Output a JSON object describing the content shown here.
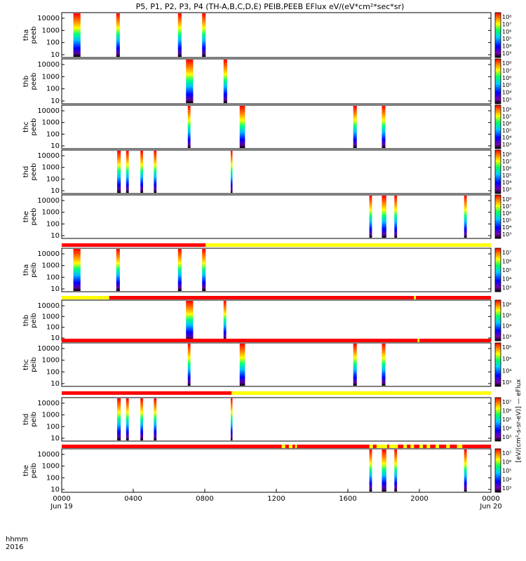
{
  "chart_data": {
    "type": "heatmap",
    "title": "P5, P1, P2, P3, P4 (TH-A,B,C,D,E) PEIB,PEEB EFlux eV/(eV*cm²*sec*sr)",
    "xlabel": "hhmm",
    "x_prefix": "2016",
    "x_ticks": [
      "0000",
      "0400",
      "0800",
      "1200",
      "1600",
      "2000",
      "0000"
    ],
    "x_date_labels": [
      "Jun 19",
      "Jun 20"
    ],
    "x_range_hours": [
      0,
      24
    ],
    "colorbar_label": "[eV/(cm²-s-sr-eV)] — eFlux",
    "y_ticks": [
      "10",
      "100",
      "1000",
      "10000"
    ],
    "y_log": true,
    "colors": {
      "burst_on": "#ff0000",
      "burst_off": "#ffff00",
      "frame": "#000000"
    },
    "panels": [
      {
        "label": "tha peeb",
        "bursts": [
          [
            0.65,
            1.05
          ],
          [
            3.05,
            3.25
          ],
          [
            6.5,
            6.7
          ],
          [
            7.85,
            8.05
          ]
        ],
        "cb_ticks": [
          "10⁸",
          "10⁷",
          "10⁶",
          "10⁵",
          "10⁴",
          "10³"
        ]
      },
      {
        "label": "thb peeb",
        "bursts": [
          [
            6.95,
            7.35
          ],
          [
            9.05,
            9.25
          ]
        ],
        "cb_ticks": [
          "10⁸",
          "10⁷",
          "10⁶",
          "10⁵",
          "10⁴",
          "10³"
        ]
      },
      {
        "label": "thc peeb",
        "bursts": [
          [
            7.05,
            7.2
          ],
          [
            9.95,
            10.25
          ],
          [
            16.3,
            16.5
          ],
          [
            17.9,
            18.1
          ]
        ],
        "cb_ticks": [
          "10⁸",
          "10⁷",
          "10⁶",
          "10⁵",
          "10⁴",
          "10³"
        ]
      },
      {
        "label": "thd peeb",
        "bursts": [
          [
            3.1,
            3.3
          ],
          [
            3.6,
            3.75
          ],
          [
            4.4,
            4.55
          ],
          [
            5.15,
            5.3
          ],
          [
            9.45,
            9.55
          ]
        ],
        "cb_ticks": [
          "10⁸",
          "10⁷",
          "10⁶",
          "10⁵",
          "10⁴",
          "10³"
        ]
      },
      {
        "label": "the peeb",
        "bursts": [
          [
            17.2,
            17.35
          ],
          [
            17.9,
            18.15
          ],
          [
            18.6,
            18.75
          ],
          [
            22.5,
            22.65
          ]
        ],
        "cb_ticks": [
          "10⁸",
          "10⁷",
          "10⁶",
          "10⁵",
          "10⁴",
          "10³"
        ]
      },
      {
        "label": "tha peib",
        "bursts": [
          [
            0.65,
            1.05
          ],
          [
            3.05,
            3.25
          ],
          [
            6.5,
            6.7
          ],
          [
            7.85,
            8.05
          ]
        ],
        "cb_ticks": [
          "10⁷",
          "10⁶",
          "10⁵",
          "10⁴",
          "10³"
        ]
      },
      {
        "label": "thb peib",
        "bursts": [
          [
            6.95,
            7.35
          ],
          [
            9.05,
            9.2
          ]
        ],
        "cb_ticks": [
          "10⁶",
          "10⁵",
          "10⁴",
          "10³"
        ]
      },
      {
        "label": "thc peib",
        "bursts": [
          [
            7.05,
            7.2
          ],
          [
            9.95,
            10.25
          ],
          [
            16.3,
            16.5
          ],
          [
            17.9,
            18.1
          ]
        ],
        "cb_ticks": [
          "10⁶",
          "10⁵",
          "10⁴",
          "10³"
        ]
      },
      {
        "label": "thd peib",
        "bursts": [
          [
            3.1,
            3.3
          ],
          [
            3.6,
            3.75
          ],
          [
            4.4,
            4.55
          ],
          [
            5.15,
            5.3
          ],
          [
            9.45,
            9.55
          ]
        ],
        "cb_ticks": [
          "10⁷",
          "10⁶",
          "10⁵",
          "10⁴",
          "10³"
        ]
      },
      {
        "label": "the peib",
        "bursts": [
          [
            17.2,
            17.35
          ],
          [
            17.9,
            18.15
          ],
          [
            18.6,
            18.75
          ],
          [
            22.5,
            22.65
          ]
        ],
        "cb_ticks": [
          "10⁷",
          "10⁶",
          "10⁵",
          "10⁴",
          "10³"
        ]
      }
    ],
    "burst_flags": [
      {
        "red": [
          [
            0,
            8.05
          ]
        ],
        "yellow": [
          [
            8.05,
            24
          ]
        ]
      },
      {
        "red": [
          [
            2.65,
            19.7
          ],
          [
            19.8,
            24
          ]
        ],
        "yellow": [
          [
            0,
            2.65
          ],
          [
            19.7,
            19.8
          ]
        ]
      },
      {
        "red": [
          [
            0,
            19.9
          ],
          [
            20.0,
            24
          ]
        ],
        "yellow": [
          [
            19.9,
            20.0
          ]
        ]
      },
      {
        "red": [
          [
            0,
            9.5
          ]
        ],
        "yellow": [
          [
            9.5,
            24
          ]
        ]
      },
      {
        "red": [
          [
            0,
            24
          ]
        ],
        "yellow": [
          [
            12.3,
            12.5
          ],
          [
            12.7,
            12.9
          ],
          [
            13.05,
            13.15
          ],
          [
            17.2,
            17.4
          ],
          [
            17.6,
            18.2
          ],
          [
            18.3,
            18.8
          ],
          [
            19.1,
            19.3
          ],
          [
            19.5,
            19.7
          ],
          [
            20.0,
            20.2
          ],
          [
            20.4,
            20.6
          ],
          [
            20.9,
            21.1
          ],
          [
            21.5,
            21.7
          ],
          [
            22.1,
            22.4
          ]
        ]
      }
    ]
  }
}
